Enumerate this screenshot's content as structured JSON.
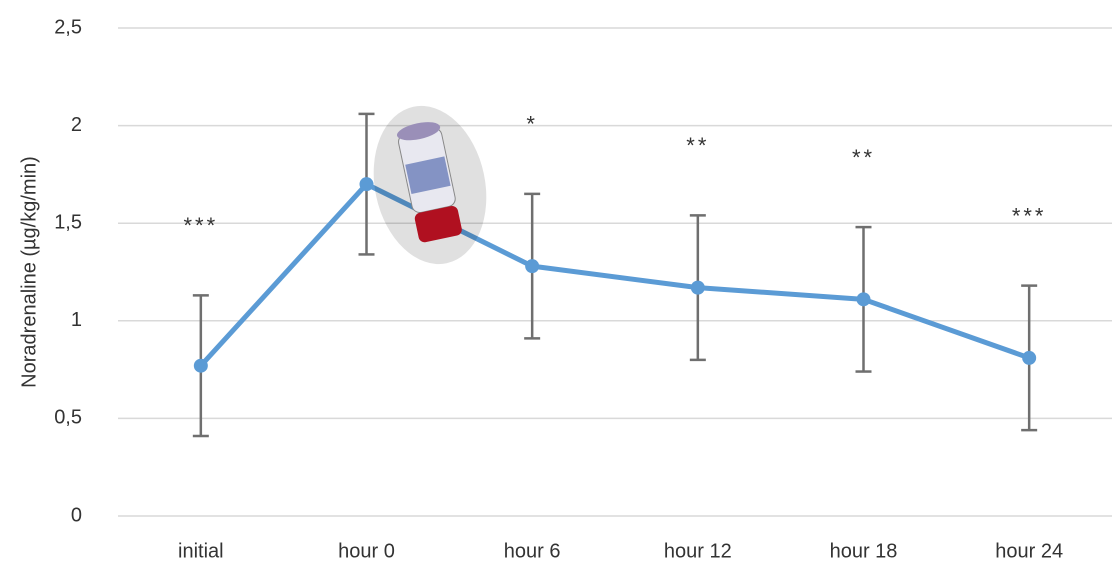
{
  "chart_data": {
    "type": "line",
    "y_label": "Noradrenaline (µg/kg/min)",
    "categories": [
      "initial",
      "hour 0",
      "hour 6",
      "hour 12",
      "hour 18",
      "hour 24"
    ],
    "series": [
      {
        "color": "#5b9bd5",
        "values": [
          0.77,
          1.7,
          1.28,
          1.17,
          1.11,
          0.81
        ],
        "errors": [
          0.36,
          0.36,
          0.37,
          0.37,
          0.37,
          0.37
        ]
      }
    ],
    "annotations": [
      "***",
      null,
      "*",
      "**",
      "**",
      "***"
    ],
    "ylim": [
      0,
      2.5
    ],
    "yticks": [
      0,
      {
        "value": 0.5,
        "label": "0,5"
      },
      1,
      {
        "value": 1.5,
        "label": "1,5"
      },
      2,
      {
        "value": 2.5,
        "label": "2,5"
      }
    ],
    "grid": true
  }
}
